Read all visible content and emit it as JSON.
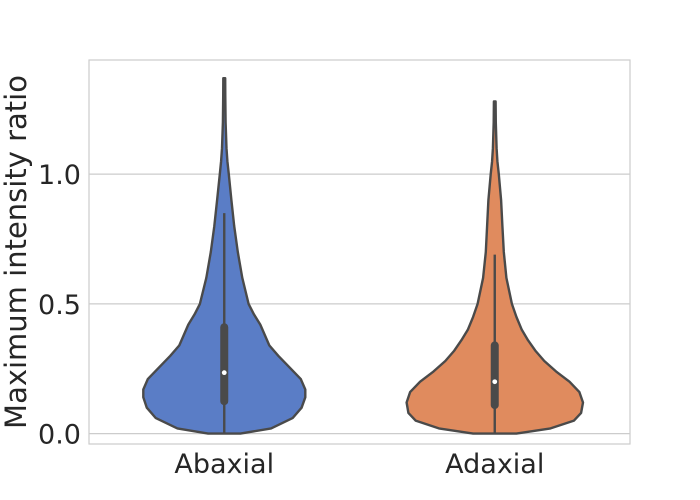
{
  "chart_data": {
    "type": "violin",
    "title": "",
    "xlabel": "",
    "ylabel": "Maximum intensity ratio",
    "ylim": [
      -0.04,
      1.44
    ],
    "yticks": [
      0.0,
      0.5,
      1.0
    ],
    "ytick_labels": [
      "0.0",
      "0.5",
      "1.0"
    ],
    "grid": "horizontal",
    "categories": [
      "Abaxial",
      "Adaxial"
    ],
    "series": [
      {
        "category": "Abaxial",
        "color": "#5a7dc6",
        "edge_color": "#4a4a4a",
        "median": 0.235,
        "q1": 0.125,
        "q3": 0.41,
        "whisker_low": 0.0,
        "whisker_high": 0.85,
        "density_profile": [
          [
            0.0,
            0.18
          ],
          [
            0.02,
            0.52
          ],
          [
            0.06,
            0.76
          ],
          [
            0.1,
            0.86
          ],
          [
            0.14,
            0.9
          ],
          [
            0.17,
            0.9
          ],
          [
            0.21,
            0.85
          ],
          [
            0.25,
            0.74
          ],
          [
            0.3,
            0.6
          ],
          [
            0.34,
            0.5
          ],
          [
            0.38,
            0.45
          ],
          [
            0.42,
            0.4
          ],
          [
            0.46,
            0.33
          ],
          [
            0.5,
            0.27
          ],
          [
            0.6,
            0.2
          ],
          [
            0.7,
            0.15
          ],
          [
            0.8,
            0.11
          ],
          [
            0.9,
            0.08
          ],
          [
            1.0,
            0.05
          ],
          [
            1.05,
            0.035
          ],
          [
            1.1,
            0.025
          ],
          [
            1.2,
            0.015
          ],
          [
            1.3,
            0.012
          ],
          [
            1.37,
            0.01
          ]
        ]
      },
      {
        "category": "Adaxial",
        "color": "#e08b5e",
        "edge_color": "#4a4a4a",
        "median": 0.2,
        "q1": 0.11,
        "q3": 0.34,
        "whisker_low": 0.0,
        "whisker_high": 0.69,
        "density_profile": [
          [
            0.0,
            0.24
          ],
          [
            0.02,
            0.62
          ],
          [
            0.05,
            0.88
          ],
          [
            0.08,
            0.96
          ],
          [
            0.12,
            0.98
          ],
          [
            0.16,
            0.94
          ],
          [
            0.2,
            0.83
          ],
          [
            0.24,
            0.68
          ],
          [
            0.28,
            0.55
          ],
          [
            0.32,
            0.45
          ],
          [
            0.36,
            0.37
          ],
          [
            0.4,
            0.3
          ],
          [
            0.45,
            0.24
          ],
          [
            0.5,
            0.19
          ],
          [
            0.6,
            0.13
          ],
          [
            0.7,
            0.1
          ],
          [
            0.8,
            0.085
          ],
          [
            0.9,
            0.07
          ],
          [
            1.0,
            0.045
          ],
          [
            1.05,
            0.03
          ],
          [
            1.1,
            0.02
          ],
          [
            1.2,
            0.012
          ],
          [
            1.28,
            0.01
          ]
        ]
      }
    ]
  }
}
